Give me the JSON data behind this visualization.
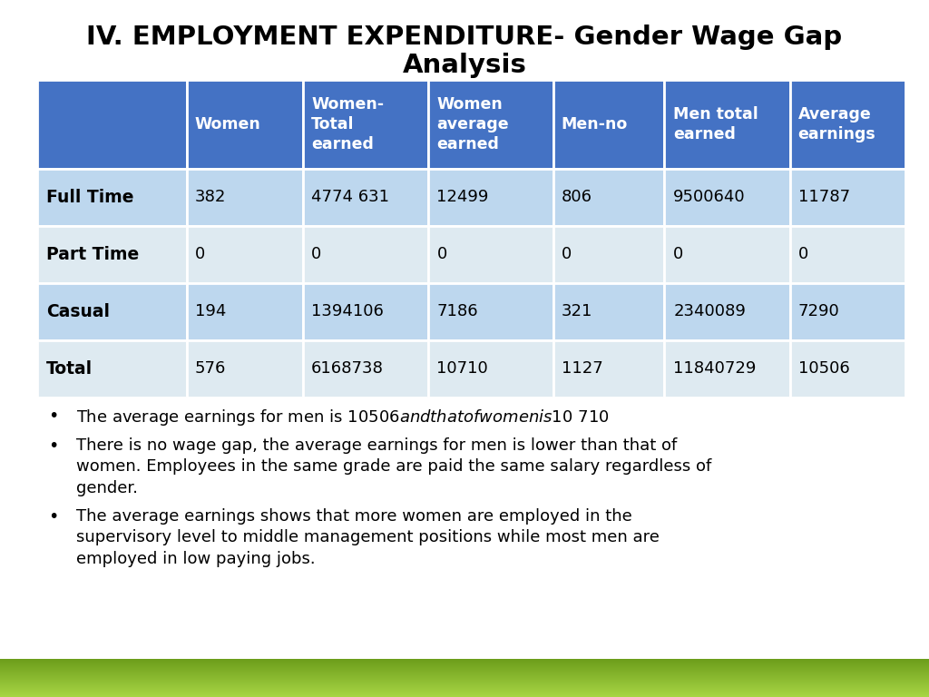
{
  "title_line1": "IV. EMPLOYMENT EXPENDITURE- Gender Wage Gap",
  "title_line2": "Analysis",
  "col_headers": [
    "Women",
    "Women-\nTotal\nearned",
    "Women\naverage\nearned",
    "Men-no",
    "Men total\nearned",
    "Average\nearnings"
  ],
  "row_headers": [
    "Full Time",
    "Part Time",
    "Casual",
    "Total"
  ],
  "table_data": [
    [
      "382",
      "4774 631",
      "12499",
      "806",
      "9500640",
      "11787"
    ],
    [
      "0",
      "0",
      "0",
      "0",
      "0",
      "0"
    ],
    [
      "194",
      "1394106",
      "7186",
      "321",
      "2340089",
      "7290"
    ],
    [
      "576",
      "6168738",
      "10710",
      "1127",
      "11840729",
      "10506"
    ]
  ],
  "header_bg": "#4472C4",
  "header_text": "#FFFFFF",
  "row_odd_bg": "#BDD7EE",
  "row_even_bg": "#DEEAF1",
  "row_header_color": "#000000",
  "data_color": "#000000",
  "bullet_points": [
    "The average earnings for men is $10 506 and that of women is $10 710",
    "There is no wage gap, the average earnings for men is lower than that of\nwomen. Employees in the same grade are paid the same salary regardless of\ngender.",
    "The average earnings shows that more women are employed in the\nsupervisory level to middle management positions while most men are\nemployed in low paying jobs."
  ],
  "background_color": "#FFFFFF",
  "footer_color_light": "#A8D645",
  "footer_color_dark": "#6B9C1A",
  "title_fontsize": 21,
  "subtitle_fontsize": 21,
  "header_fontsize": 12.5,
  "row_header_fontsize": 13.5,
  "data_fontsize": 13,
  "bullet_fontsize": 13
}
